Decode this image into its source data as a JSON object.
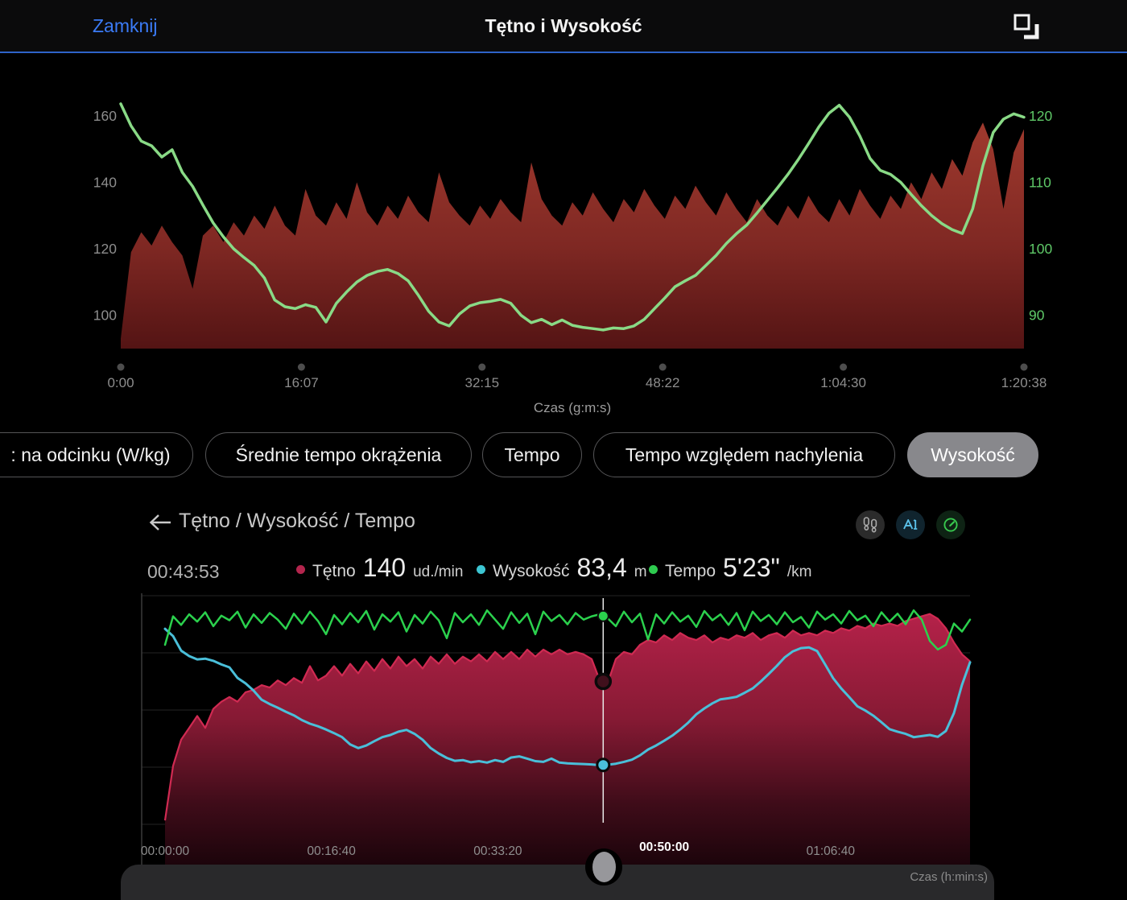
{
  "top_bar": {
    "close": "Zamknij",
    "title": "Tętno i Wysokość",
    "close_color": "#3b7bf6",
    "underline_color": "#2e63c8"
  },
  "pills": {
    "items": [
      {
        "label": ": na odcinku (W/kg)",
        "selected": false
      },
      {
        "label": "Średnie tempo okrążenia",
        "selected": false
      },
      {
        "label": "Tempo",
        "selected": false
      },
      {
        "label": "Tempo względem nachylenia",
        "selected": false
      },
      {
        "label": "Wysokość",
        "selected": true
      }
    ]
  },
  "panel": {
    "title": "Tętno / Wysokość / Tempo",
    "action_icons": [
      "footprints-icon",
      "altitude-icon",
      "gauge-icon"
    ],
    "readout": {
      "time": "00:43:53",
      "metrics": [
        {
          "label": "Tętno",
          "value": "140",
          "unit": "ud./min",
          "color": "#b3254d"
        },
        {
          "label": "Wysokość",
          "value": "83,4",
          "unit": "m",
          "color": "#3cc5d2"
        },
        {
          "label": "Tempo",
          "value": "5'23\"",
          "unit": "/km",
          "color": "#2ecb4f"
        }
      ]
    }
  },
  "bottom_bar": {
    "axis_label": "Czas (h:min:s)"
  },
  "chart_data": [
    {
      "id": "top",
      "type": "area",
      "title": "Tętno i Wysokość",
      "xlabel": "Czas (g:m:s)",
      "x_ticks": [
        {
          "label": "0:00",
          "f": 0
        },
        {
          "label": "16:07",
          "f": 0.2
        },
        {
          "label": "32:15",
          "f": 0.4
        },
        {
          "label": "48:22",
          "f": 0.6
        },
        {
          "label": "1:04:30",
          "f": 0.8
        },
        {
          "label": "1:20:38",
          "f": 1
        }
      ],
      "left_axis": {
        "ticks": [
          160,
          140,
          120,
          100
        ],
        "ylim": [
          90,
          167
        ],
        "color": "#8d8d8d"
      },
      "right_axis": {
        "ticks": [
          120,
          110,
          100,
          90
        ],
        "ylim": [
          85,
          123.5
        ],
        "color": "#5fc968"
      },
      "series": [
        {
          "name": "Tętno (ud./min)",
          "kind": "area",
          "ylim": [
            90,
            167
          ],
          "fill_top": "#a03a2e",
          "fill_mid": "#7f2823",
          "fill_bottom": "#541414",
          "values": [
            93,
            119,
            125,
            121,
            127,
            122,
            118,
            108,
            124,
            127,
            122,
            128,
            124,
            130,
            126,
            133,
            127,
            124,
            138,
            130,
            127,
            134,
            129,
            140,
            131,
            127,
            133,
            129,
            136,
            131,
            128,
            143,
            134,
            130,
            127,
            133,
            129,
            135,
            131,
            128,
            146,
            135,
            130,
            127,
            134,
            130,
            137,
            132,
            128,
            135,
            131,
            138,
            133,
            129,
            136,
            132,
            139,
            134,
            130,
            137,
            132,
            128,
            135,
            130,
            127,
            133,
            129,
            136,
            131,
            128,
            135,
            130,
            138,
            133,
            129,
            136,
            132,
            140,
            135,
            143,
            138,
            147,
            142,
            152,
            158,
            150,
            132,
            149,
            156
          ]
        },
        {
          "name": "Wysokość (m)",
          "kind": "line",
          "ylim": [
            85,
            123.5
          ],
          "color": "#89da86",
          "width": 3.5,
          "values": [
            121.8,
            118.5,
            116.2,
            115.5,
            113.8,
            114.9,
            111.5,
            109.4,
            106.6,
            103.9,
            101.8,
            100,
            98.7,
            97.5,
            95.6,
            92.3,
            91.3,
            91,
            91.6,
            91.2,
            89,
            91.8,
            93.5,
            95,
            96,
            96.6,
            96.9,
            96.3,
            95.2,
            93,
            90.6,
            89,
            88.4,
            90.2,
            91.4,
            91.9,
            92.1,
            92.4,
            91.8,
            90,
            88.9,
            89.4,
            88.6,
            89.3,
            88.5,
            88.2,
            88,
            87.8,
            88.1,
            88,
            88.4,
            89.4,
            91,
            92.6,
            94.3,
            95.2,
            96,
            97.5,
            99,
            100.8,
            102.3,
            103.6,
            105.4,
            107.3,
            109.2,
            111.2,
            113.4,
            115.8,
            118.3,
            120.4,
            121.6,
            119.8,
            117,
            113.6,
            111.8,
            111.2,
            110,
            108.2,
            106.5,
            105,
            103.8,
            102.9,
            102.3,
            106,
            112.5,
            117.5,
            119.5,
            120.3,
            119.8
          ]
        }
      ]
    },
    {
      "id": "lower",
      "type": "area",
      "title": "Tętno / Wysokość / Tempo",
      "xlabel": "Czas (h:min:s)",
      "x_ticks": [
        {
          "label": "00:00:00",
          "f": 0
        },
        {
          "label": "00:16:40",
          "f": 0.2067
        },
        {
          "label": "00:33:20",
          "f": 0.4134
        },
        {
          "label": "00:50:00",
          "f": 0.6201,
          "highlight": true
        },
        {
          "label": "01:06:40",
          "f": 0.8268
        }
      ],
      "cursor": {
        "f": 0.5443,
        "time": "00:43:53",
        "hr": 140,
        "elevation_m": 83.4,
        "pace": "5'23\""
      },
      "series": [
        {
          "name": "Tętno (ud./min)",
          "kind": "area",
          "ylim": [
            80,
            175
          ],
          "stroke": "#d02a52",
          "fill_top": "#b22148",
          "fill_mid": "#871a34",
          "fill_low": "#3f0c19",
          "fill_bottom": "#1c040b",
          "values": [
            82,
            105,
            116,
            121,
            126,
            121,
            129,
            132,
            134,
            132,
            136,
            137,
            139,
            138,
            141,
            139,
            142,
            140,
            147,
            141,
            143,
            147,
            143,
            148,
            144,
            149,
            145,
            150,
            146,
            151,
            147,
            150,
            146,
            151,
            148,
            152,
            148,
            151,
            149,
            152,
            149,
            153,
            150,
            153,
            150,
            154,
            151,
            154,
            152,
            154,
            152,
            153,
            152,
            150,
            141,
            140,
            150,
            153,
            152,
            156,
            158,
            157,
            160,
            158,
            161,
            159,
            158,
            160,
            157,
            159,
            158,
            160,
            159,
            161,
            158,
            160,
            161,
            159,
            162,
            160,
            161,
            160,
            162,
            161,
            163,
            162,
            164,
            163,
            165,
            164,
            165,
            164,
            166,
            167,
            168,
            169,
            167,
            163,
            157,
            152,
            149
          ]
        },
        {
          "name": "Wysokość (m)",
          "kind": "line",
          "ylim": [
            70,
            132
          ],
          "color": "#4abfd9",
          "width": 3,
          "values": [
            124,
            122,
            118,
            116.5,
            115.6,
            115.8,
            115.2,
            114.2,
            113.4,
            110.5,
            109,
            107,
            104.5,
            103.3,
            102.3,
            101.2,
            100.2,
            98.9,
            97.9,
            97.2,
            96.3,
            95.3,
            94.2,
            92.2,
            91.2,
            91.9,
            93.1,
            94.2,
            94.8,
            95.7,
            96.2,
            95.1,
            93.5,
            91.2,
            89.7,
            88.5,
            87.7,
            87.9,
            87.3,
            87.6,
            87.2,
            87.9,
            87.4,
            88.6,
            88.9,
            88.3,
            87.6,
            87.4,
            88.3,
            87.2,
            87,
            86.9,
            86.8,
            86.7,
            86.5,
            86.6,
            86.9,
            87.4,
            88,
            89.2,
            90.8,
            91.9,
            93.2,
            94.6,
            96.3,
            98.2,
            100.5,
            102.1,
            103.5,
            104.6,
            104.9,
            105.3,
            106.4,
            107.6,
            109.5,
            111.6,
            113.8,
            116.2,
            117.8,
            118.7,
            118.9,
            117.9,
            114.2,
            110.4,
            107.6,
            105.2,
            102.7,
            101.5,
            100.1,
            98.3,
            96.4,
            95.7,
            95.1,
            94.2,
            94.5,
            94.8,
            94.3,
            95.9,
            100.8,
            108.6,
            114.8
          ]
        },
        {
          "name": "Tempo (s/km)",
          "kind": "line",
          "ylim": [
            640,
            300
          ],
          "color": "#2bd14d",
          "width": 2.5,
          "values": [
            368,
            325,
            338,
            322,
            333,
            319,
            340,
            324,
            331,
            318,
            342,
            322,
            335,
            320,
            330,
            344,
            321,
            336,
            318,
            332,
            352,
            323,
            337,
            320,
            334,
            317,
            345,
            322,
            333,
            319,
            348,
            323,
            336,
            318,
            331,
            358,
            320,
            334,
            322,
            338,
            316,
            330,
            344,
            319,
            335,
            321,
            352,
            318,
            332,
            323,
            337,
            320,
            330,
            325,
            322,
            328,
            340,
            318,
            334,
            321,
            360,
            322,
            336,
            319,
            333,
            324,
            341,
            317,
            331,
            322,
            338,
            320,
            346,
            318,
            332,
            323,
            337,
            319,
            334,
            326,
            342,
            318,
            330,
            322,
            336,
            317,
            331,
            324,
            340,
            319,
            333,
            321,
            337,
            316,
            330,
            362,
            375,
            368,
            336,
            348,
            330
          ]
        }
      ]
    }
  ]
}
